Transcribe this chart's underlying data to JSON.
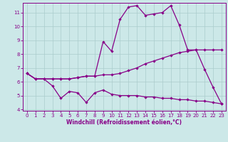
{
  "xlabel": "Windchill (Refroidissement éolien,°C)",
  "x_values": [
    0,
    1,
    2,
    3,
    4,
    5,
    6,
    7,
    8,
    9,
    10,
    11,
    12,
    13,
    14,
    15,
    16,
    17,
    18,
    19,
    20,
    21,
    22,
    23
  ],
  "line1_y": [
    6.6,
    6.2,
    6.2,
    5.7,
    4.8,
    5.3,
    5.2,
    4.5,
    5.2,
    5.4,
    5.1,
    5.0,
    5.0,
    5.0,
    4.9,
    4.9,
    4.8,
    4.8,
    4.7,
    4.7,
    4.6,
    4.6,
    4.5,
    4.4
  ],
  "line2_y": [
    6.6,
    6.2,
    6.2,
    6.2,
    6.2,
    6.2,
    6.3,
    6.4,
    6.4,
    6.5,
    6.5,
    6.6,
    6.8,
    7.0,
    7.3,
    7.5,
    7.7,
    7.9,
    8.1,
    8.2,
    8.3,
    8.3,
    8.3,
    8.3
  ],
  "line3_y": [
    6.6,
    6.2,
    6.2,
    6.2,
    6.2,
    6.2,
    6.3,
    6.4,
    6.4,
    8.9,
    8.2,
    10.5,
    11.4,
    11.5,
    10.8,
    10.9,
    11.0,
    11.5,
    10.1,
    8.3,
    8.3,
    6.9,
    5.6,
    4.4
  ],
  "line_color": "#880088",
  "bg_color": "#cce8e8",
  "grid_color": "#aacccc",
  "xlim": [
    -0.5,
    23.5
  ],
  "ylim": [
    3.9,
    11.7
  ],
  "yticks": [
    4,
    5,
    6,
    7,
    8,
    9,
    10,
    11
  ],
  "xticks": [
    0,
    1,
    2,
    3,
    4,
    5,
    6,
    7,
    8,
    9,
    10,
    11,
    12,
    13,
    14,
    15,
    16,
    17,
    18,
    19,
    20,
    21,
    22,
    23
  ],
  "marker": "D",
  "markersize": 2.2,
  "linewidth": 0.9,
  "tick_fontsize": 5.0,
  "xlabel_fontsize": 5.5
}
